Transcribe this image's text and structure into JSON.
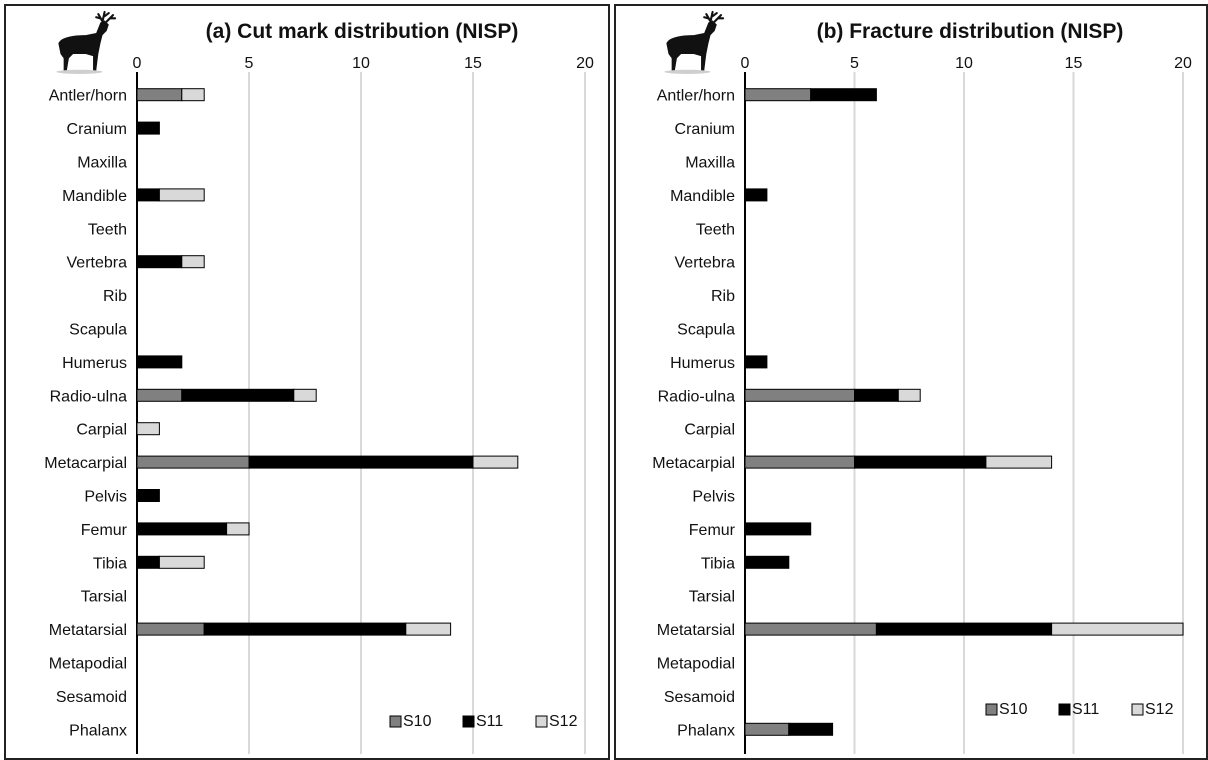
{
  "chart_data": [
    {
      "type": "bar",
      "orientation": "horizontal",
      "stacked": true,
      "title": "(a) Cut mark distribution (NISP)",
      "categories": [
        "Antler/horn",
        "Cranium",
        "Maxilla",
        "Mandible",
        "Teeth",
        "Vertebra",
        "Rib",
        "Scapula",
        "Humerus",
        "Radio-ulna",
        "Carpial",
        "Metacarpial",
        "Pelvis",
        "Femur",
        "Tibia",
        "Tarsial",
        "Metatarsial",
        "Metapodial",
        "Sesamoid",
        "Phalanx"
      ],
      "series": [
        {
          "name": "S10",
          "color": "#808080",
          "values": [
            2,
            0,
            0,
            0,
            0,
            0,
            0,
            0,
            0,
            2,
            0,
            5,
            0,
            0,
            0,
            0,
            3,
            0,
            0,
            0
          ]
        },
        {
          "name": "S11",
          "color": "#000000",
          "values": [
            0,
            1,
            0,
            1,
            0,
            2,
            0,
            0,
            2,
            5,
            0,
            10,
            1,
            4,
            1,
            0,
            9,
            0,
            0,
            0
          ]
        },
        {
          "name": "S12",
          "color": "#d9d9d9",
          "values": [
            1,
            0,
            0,
            2,
            0,
            1,
            0,
            0,
            0,
            1,
            1,
            2,
            0,
            1,
            2,
            0,
            2,
            0,
            0,
            0
          ]
        }
      ],
      "xticks": [
        "0",
        "5",
        "10",
        "15",
        "20"
      ],
      "xlim": [
        0,
        20
      ],
      "axis_position": "top",
      "grid": true,
      "legend_position": "bottom-right"
    },
    {
      "type": "bar",
      "orientation": "horizontal",
      "stacked": true,
      "title": "(b) Fracture distribution (NISP)",
      "categories": [
        "Antler/horn",
        "Cranium",
        "Maxilla",
        "Mandible",
        "Teeth",
        "Vertebra",
        "Rib",
        "Scapula",
        "Humerus",
        "Radio-ulna",
        "Carpial",
        "Metacarpial",
        "Pelvis",
        "Femur",
        "Tibia",
        "Tarsial",
        "Metatarsial",
        "Metapodial",
        "Sesamoid",
        "Phalanx"
      ],
      "series": [
        {
          "name": "S10",
          "color": "#808080",
          "values": [
            3,
            0,
            0,
            0,
            0,
            0,
            0,
            0,
            0,
            5,
            0,
            5,
            0,
            0,
            0,
            0,
            6,
            0,
            0,
            2
          ]
        },
        {
          "name": "S11",
          "color": "#000000",
          "values": [
            3,
            0,
            0,
            1,
            0,
            0,
            0,
            0,
            1,
            2,
            0,
            6,
            0,
            3,
            2,
            0,
            8,
            0,
            0,
            2
          ]
        },
        {
          "name": "S12",
          "color": "#d9d9d9",
          "values": [
            0,
            0,
            0,
            0,
            0,
            0,
            0,
            0,
            0,
            1,
            0,
            3,
            0,
            0,
            0,
            0,
            6,
            0,
            0,
            0
          ]
        }
      ],
      "xticks": [
        "0",
        "5",
        "10",
        "15",
        "20"
      ],
      "xlim": [
        0,
        20
      ],
      "axis_position": "top",
      "grid": true,
      "legend_position": "bottom-right"
    }
  ],
  "icons": {
    "panel_a": "deer-silhouette-icon",
    "panel_b": "deer-silhouette-icon"
  }
}
